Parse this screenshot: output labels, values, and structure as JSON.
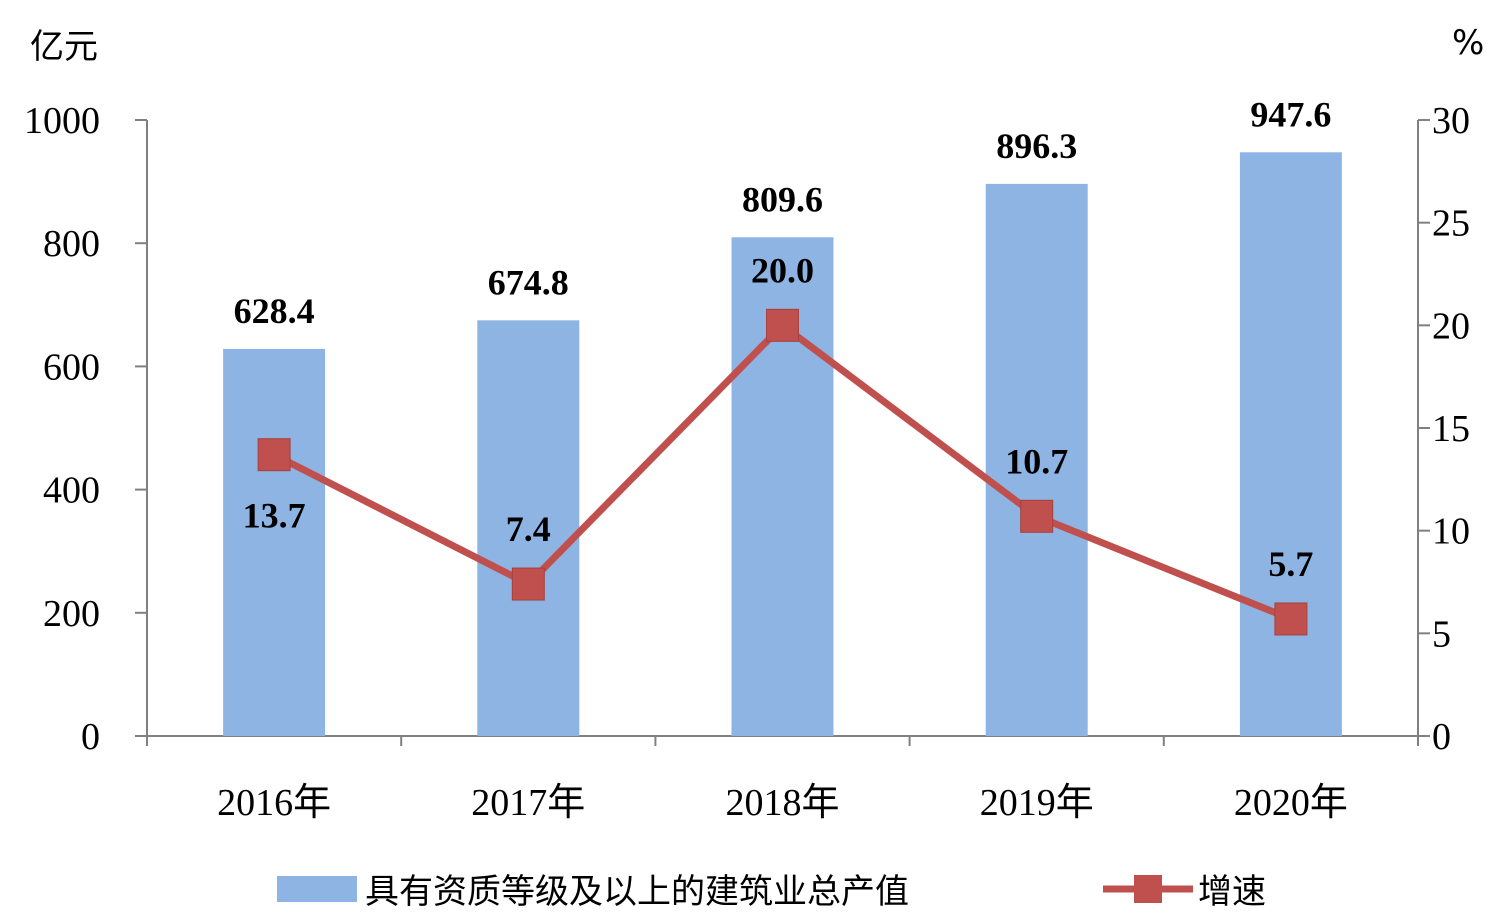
{
  "chart_data": {
    "type": "bar",
    "categories": [
      "2016年",
      "2017年",
      "2018年",
      "2019年",
      "2020年"
    ],
    "series": [
      {
        "name": "具有资质等级及以上的建筑业总产值",
        "type": "bar",
        "axis": "left",
        "values": [
          628.4,
          674.8,
          809.6,
          896.3,
          947.6
        ],
        "labels": [
          "628.4",
          "674.8",
          "809.6",
          "896.3",
          "947.6"
        ],
        "color": "#8EB4E3"
      },
      {
        "name": "增速",
        "type": "line",
        "axis": "right",
        "values": [
          13.7,
          7.4,
          20.0,
          10.7,
          5.7
        ],
        "labels": [
          "13.7",
          "7.4",
          "20.0",
          "10.7",
          "5.7"
        ],
        "color": "#C0504D"
      }
    ],
    "left_axis": {
      "unit": "亿元",
      "ylim": [
        0,
        1000
      ],
      "ticks": [
        0,
        200,
        400,
        600,
        800,
        1000
      ],
      "tick_labels": [
        "0",
        "200",
        "400",
        "600",
        "800",
        "1000"
      ]
    },
    "right_axis": {
      "unit": "%",
      "ylim": [
        0,
        30
      ],
      "ticks": [
        0,
        5,
        10,
        15,
        20,
        25,
        30
      ],
      "tick_labels": [
        "0",
        "5",
        "10",
        "15",
        "20",
        "25",
        "30"
      ]
    },
    "grid": false,
    "legend_position": "bottom"
  }
}
